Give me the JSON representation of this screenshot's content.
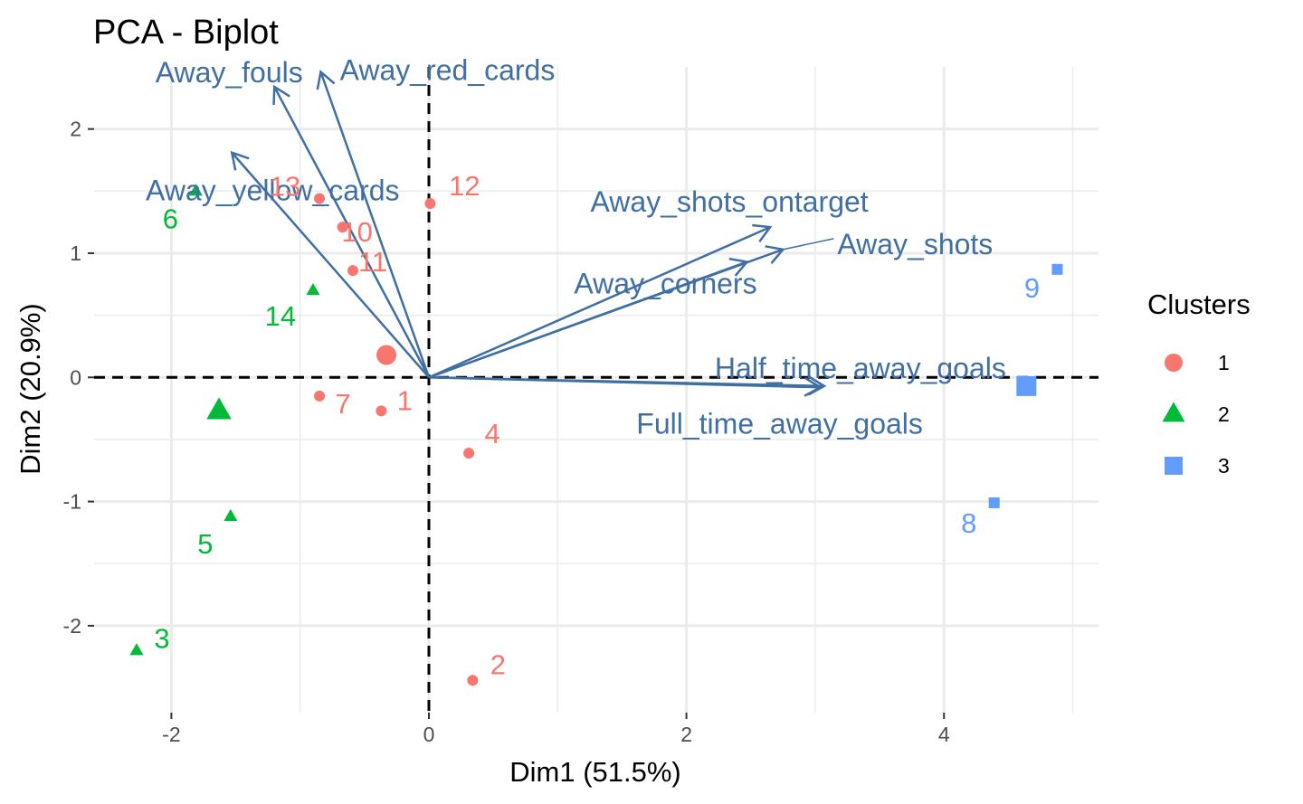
{
  "chart_data": {
    "type": "scatter",
    "title": "PCA - Biplot",
    "xlabel": "Dim1 (51.5%)",
    "ylabel": "Dim2 (20.9%)",
    "xlim": [
      -2.6,
      5.2
    ],
    "ylim": [
      -2.7,
      2.5
    ],
    "x_ticks": [
      -2,
      0,
      2,
      4
    ],
    "y_ticks": [
      -2,
      -1,
      0,
      1,
      2
    ],
    "grid": true,
    "legend": {
      "title": "Clusters",
      "position": "right",
      "entries": [
        {
          "label": "1",
          "shape": "circle",
          "color": "#f8766d"
        },
        {
          "label": "2",
          "shape": "triangle",
          "color": "#00ba38"
        },
        {
          "label": "3",
          "shape": "square",
          "color": "#619cff"
        }
      ]
    },
    "series": [
      {
        "name": "1",
        "shape": "circle",
        "color": "#f8766d",
        "points": [
          {
            "label": "13",
            "x": -0.85,
            "y": 1.44
          },
          {
            "label": "10",
            "x": -0.67,
            "y": 1.21
          },
          {
            "label": "11",
            "x": -0.59,
            "y": 0.86
          },
          {
            "label": "12",
            "x": 0.01,
            "y": 1.4
          },
          {
            "label": "7",
            "x": -0.85,
            "y": -0.15
          },
          {
            "label": "1",
            "x": -0.37,
            "y": -0.27
          },
          {
            "label": "4",
            "x": 0.31,
            "y": -0.61
          },
          {
            "label": "2",
            "x": 0.34,
            "y": -2.44
          }
        ],
        "centroid": {
          "x": -0.33,
          "y": 0.18
        }
      },
      {
        "name": "2",
        "shape": "triangle",
        "color": "#00ba38",
        "points": [
          {
            "label": "6",
            "x": -1.81,
            "y": 1.5
          },
          {
            "label": "14",
            "x": -0.9,
            "y": 0.7
          },
          {
            "label": "5",
            "x": -1.54,
            "y": -1.12
          },
          {
            "label": "3",
            "x": -2.27,
            "y": -2.2
          }
        ],
        "centroid": {
          "x": -1.63,
          "y": -0.27
        }
      },
      {
        "name": "3",
        "shape": "square",
        "color": "#619cff",
        "points": [
          {
            "label": "9",
            "x": 4.88,
            "y": 0.87
          },
          {
            "label": "8",
            "x": 4.39,
            "y": -1.01
          }
        ],
        "centroid": {
          "x": 4.64,
          "y": -0.07
        }
      }
    ],
    "variables": [
      {
        "name": "Away_red_cards",
        "x": -0.84,
        "y": 2.46
      },
      {
        "name": "Away_fouls",
        "x": -1.2,
        "y": 2.34
      },
      {
        "name": "Away_yellow_cards",
        "x": -1.53,
        "y": 1.81
      },
      {
        "name": "Away_shots_ontarget",
        "x": 2.65,
        "y": 1.21
      },
      {
        "name": "Away_shots",
        "x": 2.75,
        "y": 1.03
      },
      {
        "name": "Away_corners",
        "x": 2.47,
        "y": 0.93
      },
      {
        "name": "Half_time_away_goals",
        "x": 3.07,
        "y": -0.07
      },
      {
        "name": "Full_time_away_goals",
        "x": 3.04,
        "y": -0.08
      }
    ]
  }
}
